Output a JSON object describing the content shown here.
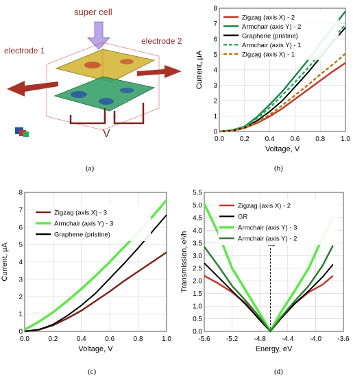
{
  "illustration": {
    "super_cell_label": "super cell",
    "electrode1_label": "electrode 1",
    "electrode2_label": "electrode 2",
    "voltage_label": "V"
  },
  "captions": {
    "a": "(a)",
    "b": "(b)",
    "c": "(c)",
    "d": "(d)"
  },
  "chart_data": [
    {
      "id": "b",
      "type": "line",
      "xlabel": "Voltage, V",
      "ylabel": "Current, μA",
      "xlim": [
        0,
        1.0
      ],
      "ylim": [
        0,
        8
      ],
      "xticks": [
        "0.0",
        "0.2",
        "0.4",
        "0.6",
        "0.8",
        "1.0"
      ],
      "yticks": [
        "0",
        "1",
        "2",
        "3",
        "4",
        "5",
        "6",
        "7",
        "8"
      ],
      "legend_position": "top-left",
      "grid": true,
      "x": [
        0,
        0.1,
        0.2,
        0.3,
        0.4,
        0.5,
        0.6,
        0.7,
        0.8,
        0.9,
        1.0
      ],
      "series": [
        {
          "name": "Zigzag (axis X) - 2",
          "color": "#c0392b",
          "dash": false,
          "values": [
            0,
            0.05,
            0.22,
            0.55,
            0.98,
            1.5,
            2.1,
            2.7,
            3.3,
            3.9,
            4.45
          ]
        },
        {
          "name": "Armchair (axis Y) - 2",
          "color": "#1e8449",
          "dash": false,
          "values": [
            0,
            0.08,
            0.32,
            0.95,
            1.75,
            2.6,
            3.6,
            4.6,
            5.7,
            6.75,
            7.8
          ]
        },
        {
          "name": "Graphene (pristine)",
          "color": "#000000",
          "dash": false,
          "values": [
            0,
            0.05,
            0.25,
            0.7,
            1.3,
            2.0,
            2.9,
            3.8,
            4.8,
            5.8,
            6.75
          ]
        },
        {
          "name": "Armchair (axis Y) - 1",
          "color": "#27ae60",
          "dash": true,
          "values": [
            0,
            0.07,
            0.3,
            0.85,
            1.55,
            2.35,
            3.2,
            4.1,
            5.05,
            6.0,
            6.95
          ]
        },
        {
          "name": "Zigzag (axis X) - 1",
          "color": "#b9770e",
          "dash": true,
          "values": [
            0,
            0.05,
            0.22,
            0.6,
            1.1,
            1.7,
            2.35,
            3.0,
            3.7,
            4.35,
            5.05
          ]
        }
      ]
    },
    {
      "id": "c",
      "type": "line",
      "xlabel": "Voltage, V",
      "ylabel": "Current, μA",
      "xlim": [
        0,
        1.0
      ],
      "ylim": [
        0,
        8
      ],
      "xticks": [
        "0.0",
        "0.2",
        "0.4",
        "0.6",
        "0.8",
        "1.0"
      ],
      "yticks": [
        "0",
        "1",
        "2",
        "3",
        "4",
        "5",
        "6",
        "7",
        "8"
      ],
      "legend_position": "top-left",
      "grid": true,
      "x": [
        0,
        0.1,
        0.2,
        0.3,
        0.4,
        0.5,
        0.6,
        0.7,
        0.8,
        0.9,
        1.0
      ],
      "series": [
        {
          "name": "Zigzag (axis X) - 3",
          "color": "#7b241c",
          "dash": false,
          "values": [
            0,
            0.1,
            0.35,
            0.75,
            1.2,
            1.75,
            2.3,
            2.9,
            3.45,
            4.0,
            4.55
          ]
        },
        {
          "name": "Armchair (axis Y) - 3",
          "color": "#5ee84a",
          "dash": false,
          "values": [
            0.1,
            0.55,
            1.1,
            1.75,
            2.45,
            3.2,
            4.0,
            4.85,
            5.7,
            6.6,
            7.55
          ]
        },
        {
          "name": "Graphene (pristine)",
          "color": "#000000",
          "dash": false,
          "values": [
            0,
            0.1,
            0.4,
            0.9,
            1.5,
            2.2,
            3.05,
            3.9,
            4.8,
            5.75,
            6.7
          ]
        }
      ]
    },
    {
      "id": "d",
      "type": "line",
      "xlabel": "Energy, eV",
      "ylabel": "Transmission, e²/h",
      "xlim": [
        -5.6,
        -3.6
      ],
      "ylim": [
        0,
        5.5
      ],
      "xticks": [
        "-5.6",
        "-5.2",
        "-4.8",
        "-4.4",
        "-4.0",
        "-3.6"
      ],
      "yticks": [
        "0.0",
        "0.5",
        "1.0",
        "1.5",
        "2.0",
        "2.5",
        "3.0",
        "3.5",
        "4.0",
        "4.5",
        "5.0",
        "5.5"
      ],
      "legend_position": "top-right",
      "grid": true,
      "fermi_level": {
        "label": "E",
        "subscript": "F",
        "x": -4.65
      },
      "x": [
        -5.6,
        -5.4,
        -5.2,
        -5.0,
        -4.8,
        -4.65,
        -4.5,
        -4.3,
        -4.1,
        -3.9,
        -3.75
      ],
      "series": [
        {
          "name": "Zigzag (axis X) - 2",
          "color": "#c0392b",
          "dash": false,
          "values": [
            2.2,
            1.9,
            1.55,
            1.1,
            0.45,
            0.0,
            0.5,
            1.1,
            1.55,
            1.85,
            2.2
          ]
        },
        {
          "name": "GR",
          "color": "#000000",
          "dash": false,
          "values": [
            2.7,
            2.15,
            1.6,
            1.05,
            0.45,
            0.0,
            0.5,
            1.1,
            1.6,
            2.15,
            2.65
          ]
        },
        {
          "name": "Armchair (axis Y) - 3",
          "color": "#5ee84a",
          "dash": false,
          "values": [
            5.05,
            3.9,
            2.5,
            1.6,
            0.7,
            0.0,
            0.75,
            1.6,
            2.5,
            3.7,
            4.55
          ]
        },
        {
          "name": "Armchair (axis Y) - 2",
          "color": "#2e7d32",
          "dash": false,
          "values": [
            3.35,
            2.6,
            1.8,
            1.2,
            0.55,
            0.0,
            0.55,
            1.2,
            1.8,
            2.6,
            3.4
          ]
        }
      ]
    }
  ]
}
